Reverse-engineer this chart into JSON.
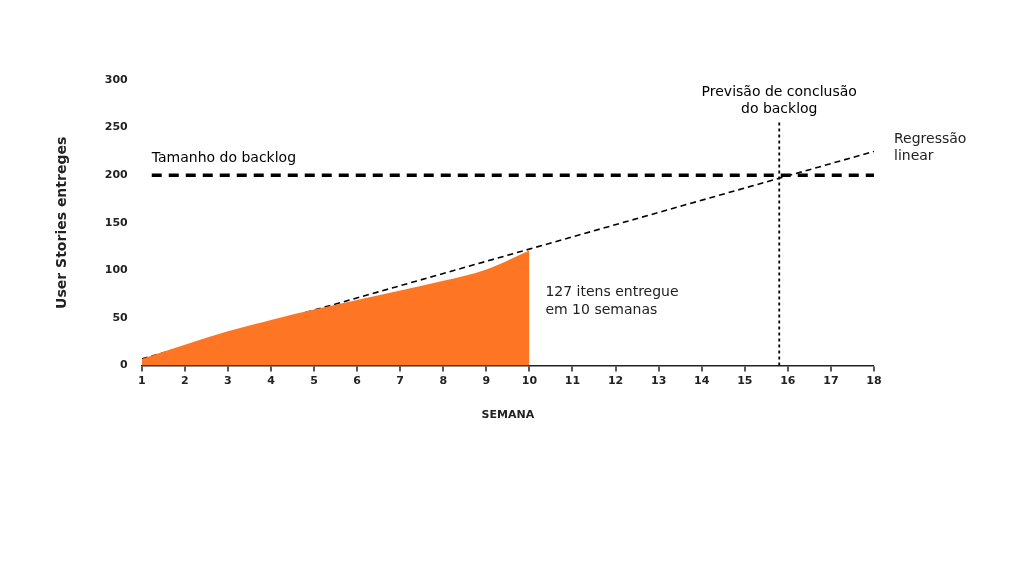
{
  "chart_data": {
    "type": "area",
    "xlabel": "SEMANA",
    "ylabel": "User Stories entreges",
    "x": [
      1,
      2,
      3,
      4,
      5,
      6,
      7,
      8,
      9,
      10
    ],
    "xlim": [
      1,
      18
    ],
    "xticks": [
      1,
      2,
      3,
      4,
      5,
      6,
      7,
      8,
      9,
      10,
      11,
      12,
      13,
      14,
      15,
      16,
      17,
      18
    ],
    "ylim": [
      0,
      300
    ],
    "yticks": [
      0,
      50,
      100,
      150,
      200,
      250,
      300
    ],
    "series": [
      {
        "color": "#fe7624",
        "values": [
          7,
          22,
          36,
          48,
          59,
          69,
          79,
          89,
          101,
          121
        ]
      },
      {
        "name": "Regressão linear",
        "type": "line",
        "x": [
          1,
          18
        ],
        "values": [
          7,
          225
        ],
        "color": "#000000",
        "line_style": "dashed",
        "marker": "none"
      }
    ],
    "ref_lines": [
      {
        "axis": "y",
        "value": 200,
        "label": "Tamanho do backlog",
        "color": "#000000",
        "line_style": "dashed"
      },
      {
        "axis": "x",
        "value": 15.8,
        "label": "Previsão de conclusão do backlog",
        "color": "#000000",
        "line_style": "dotted"
      }
    ],
    "annotations": [
      {
        "text": "127 itens entregue em 10 semanas",
        "x": 10,
        "y": 121
      }
    ],
    "legend": false,
    "grid": false
  }
}
